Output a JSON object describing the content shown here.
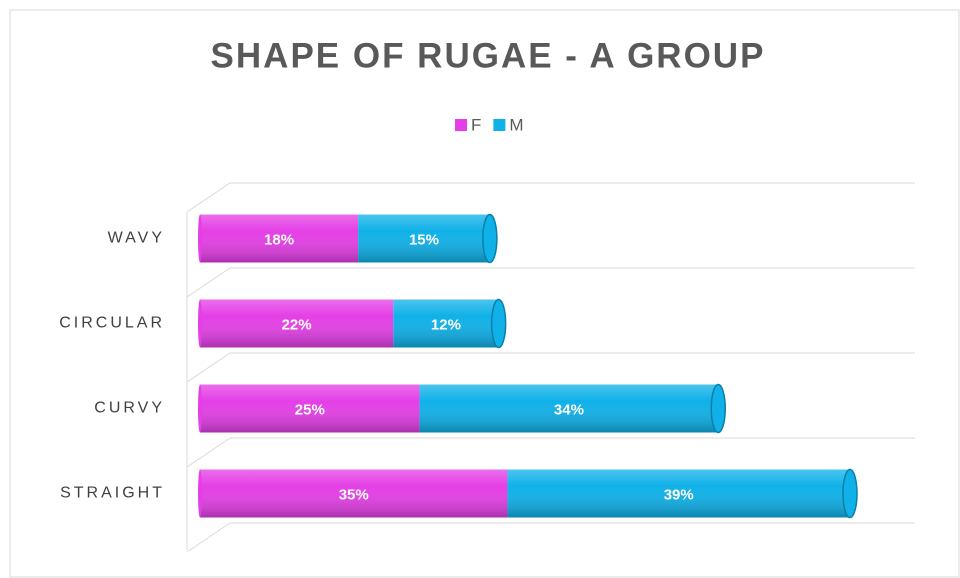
{
  "chart_data": {
    "type": "bar",
    "orientation": "horizontal",
    "stacked": true,
    "three_d": true,
    "title": "SHAPE OF RUGAE - A GROUP",
    "categories": [
      "WAVY",
      "CIRCULAR",
      "CURVY",
      "STRAIGHT"
    ],
    "series": [
      {
        "name": "F",
        "color": "#e43fe6",
        "values": [
          18,
          22,
          25,
          35
        ],
        "value_labels": [
          "18%",
          "22%",
          "25%",
          "35%"
        ]
      },
      {
        "name": "M",
        "color": "#0fb1e8",
        "values": [
          15,
          12,
          34,
          39
        ],
        "value_labels": [
          "15%",
          "12%",
          "34%",
          "39%"
        ]
      }
    ],
    "legend": "top",
    "grid": true
  }
}
